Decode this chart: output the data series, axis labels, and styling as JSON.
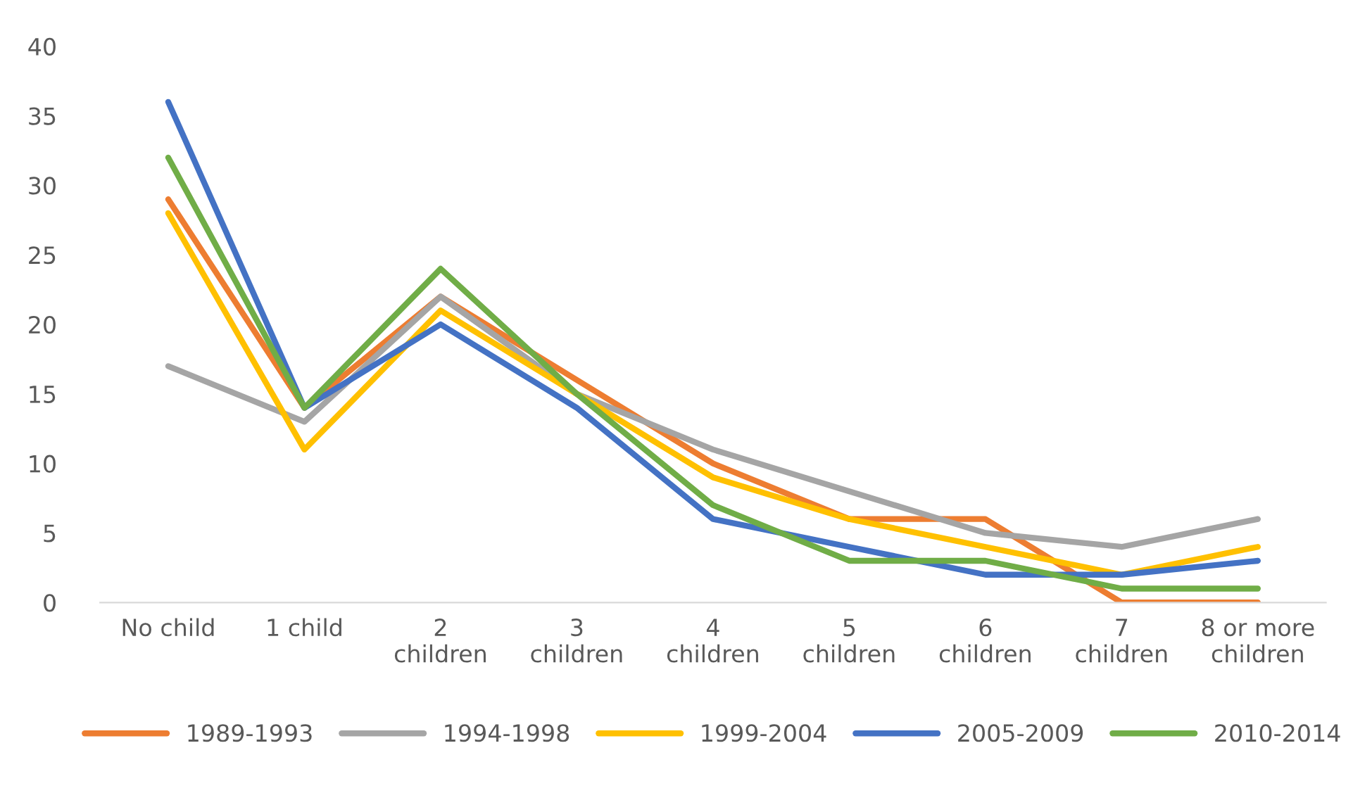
{
  "chart_data": {
    "type": "line",
    "categories": [
      "No child",
      "1 child",
      "2\nchildren",
      "3\nchildren",
      "4\nchildren",
      "5\nchildren",
      "6\nchildren",
      "7\nchildren",
      "8 or more\nchildren"
    ],
    "series": [
      {
        "name": "1989-1993",
        "color": "#ed7d31",
        "values": [
          29,
          14,
          22,
          16,
          10,
          6,
          6,
          0,
          0
        ]
      },
      {
        "name": "1994-1998",
        "color": "#a5a5a5",
        "values": [
          17,
          13,
          22,
          15,
          11,
          8,
          5,
          4,
          6
        ]
      },
      {
        "name": "1999-2004",
        "color": "#ffc000",
        "values": [
          28,
          11,
          21,
          15,
          9,
          6,
          4,
          2,
          4
        ]
      },
      {
        "name": "2005-2009",
        "color": "#4472c4",
        "values": [
          36,
          14,
          20,
          14,
          6,
          4,
          2,
          2,
          3
        ]
      },
      {
        "name": "2010-2014",
        "color": "#70ad47",
        "values": [
          32,
          14,
          24,
          15,
          7,
          3,
          3,
          1,
          1
        ]
      }
    ],
    "ylim": [
      0,
      40
    ],
    "yticks": [
      0,
      5,
      10,
      15,
      20,
      25,
      30,
      35,
      40
    ],
    "grid": false,
    "legend": "bottom",
    "marker": "none",
    "line_style": "solid"
  }
}
